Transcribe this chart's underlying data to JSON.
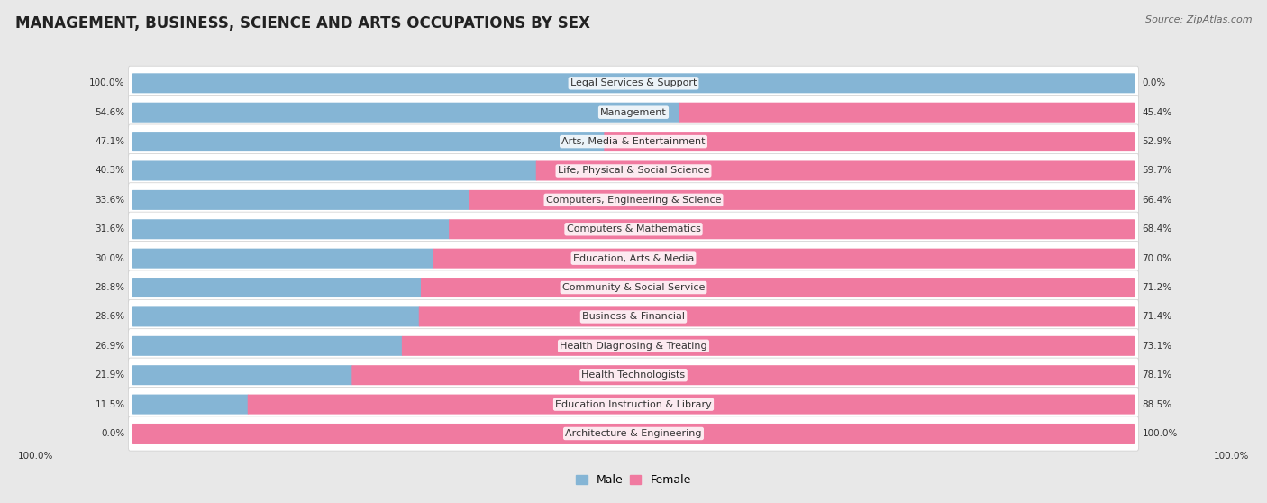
{
  "title": "MANAGEMENT, BUSINESS, SCIENCE AND ARTS OCCUPATIONS BY SEX",
  "source": "Source: ZipAtlas.com",
  "categories": [
    "Legal Services & Support",
    "Management",
    "Arts, Media & Entertainment",
    "Life, Physical & Social Science",
    "Computers, Engineering & Science",
    "Computers & Mathematics",
    "Education, Arts & Media",
    "Community & Social Service",
    "Business & Financial",
    "Health Diagnosing & Treating",
    "Health Technologists",
    "Education Instruction & Library",
    "Architecture & Engineering"
  ],
  "male_pct": [
    100.0,
    54.6,
    47.1,
    40.3,
    33.6,
    31.6,
    30.0,
    28.8,
    28.6,
    26.9,
    21.9,
    11.5,
    0.0
  ],
  "female_pct": [
    0.0,
    45.4,
    52.9,
    59.7,
    66.4,
    68.4,
    70.0,
    71.2,
    71.4,
    73.1,
    78.1,
    88.5,
    100.0
  ],
  "male_color": "#85b5d5",
  "female_color": "#f07aa0",
  "bg_color": "#e8e8e8",
  "bar_bg_color": "#f8f8f8",
  "row_bg_color": "#ffffff",
  "title_fontsize": 12,
  "label_fontsize": 8,
  "pct_fontsize": 7.5
}
